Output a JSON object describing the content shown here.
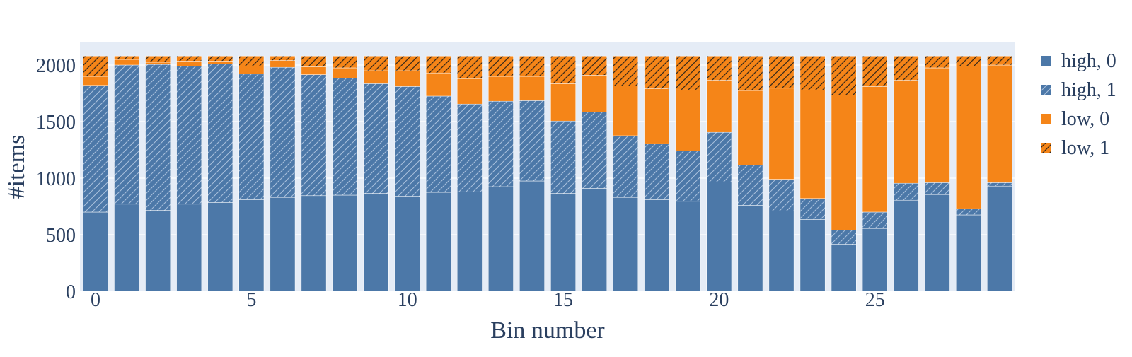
{
  "chart_data": {
    "type": "bar",
    "barmode": "stack",
    "title": "",
    "xlabel": "Bin number",
    "ylabel": "#items",
    "x": [
      0,
      1,
      2,
      3,
      4,
      5,
      6,
      7,
      8,
      9,
      10,
      11,
      12,
      13,
      14,
      15,
      16,
      17,
      18,
      19,
      20,
      21,
      22,
      23,
      24,
      25,
      26,
      27,
      28,
      29
    ],
    "xticks": [
      0,
      5,
      10,
      15,
      20,
      25
    ],
    "yticks": [
      0,
      500,
      1000,
      1500,
      2000
    ],
    "ylim": [
      0,
      2200
    ],
    "xlim": [
      -0.5,
      29.5
    ],
    "grid": true,
    "legend_position": "top-right",
    "series": [
      {
        "name": "high, 0",
        "color": "#4c78a8",
        "pattern": "none",
        "values": [
          700,
          770,
          715,
          770,
          785,
          810,
          830,
          845,
          850,
          865,
          840,
          875,
          880,
          925,
          975,
          865,
          910,
          830,
          810,
          795,
          965,
          760,
          710,
          635,
          415,
          555,
          805,
          855,
          675,
          930
        ]
      },
      {
        "name": "high, 1",
        "color": "#4c78a8",
        "pattern": "diagonal",
        "values": [
          1120,
          1230,
          1290,
          1220,
          1225,
          1110,
          1150,
          1070,
          1035,
          970,
          970,
          850,
          775,
          755,
          710,
          640,
          675,
          545,
          495,
          445,
          440,
          355,
          280,
          185,
          125,
          145,
          150,
          105,
          55,
          30
        ]
      },
      {
        "name": "low, 0",
        "color": "#f58518",
        "pattern": "none",
        "values": [
          80,
          50,
          20,
          45,
          25,
          70,
          60,
          70,
          90,
          115,
          140,
          205,
          225,
          220,
          215,
          330,
          325,
          440,
          485,
          540,
          460,
          660,
          805,
          960,
          1195,
          1110,
          910,
          1015,
          1260,
          1040
        ]
      },
      {
        "name": "low, 1",
        "color": "#f58518",
        "pattern": "diagonal",
        "values": [
          180,
          30,
          55,
          45,
          45,
          90,
          40,
          95,
          105,
          130,
          130,
          150,
          200,
          180,
          180,
          245,
          170,
          265,
          290,
          300,
          215,
          305,
          285,
          300,
          345,
          270,
          215,
          105,
          90,
          80
        ]
      }
    ]
  }
}
